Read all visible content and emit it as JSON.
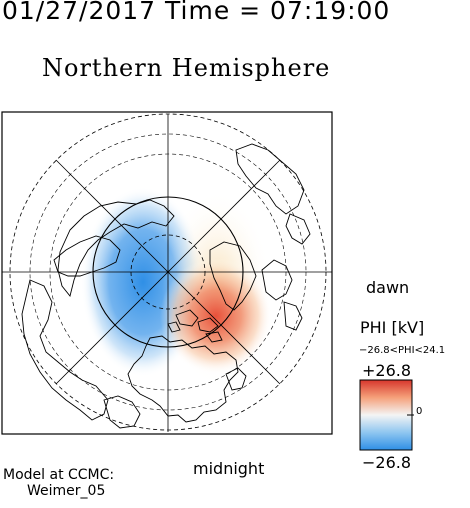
{
  "header": {
    "datetime": "01/27/2017 Time = 07:19:00",
    "title": "Northern Hemisphere"
  },
  "map": {
    "orientation_labels": {
      "right": "dawn",
      "bottom": "midnight"
    },
    "colors": {
      "negative": "#2f8fe6",
      "positive": "#e8503a",
      "frame": "#000000",
      "coast": "#000000"
    },
    "negative_cell": {
      "location": "dusk side, centered pre-midnight",
      "shown_level": "about -26"
    },
    "positive_cell": {
      "location": "dawn side, centered post-midnight",
      "shown_level": "about +25"
    }
  },
  "colorbar": {
    "title": "PHI [kV]",
    "range_text": "−26.8<PHI<24.1",
    "max_label": "+26.8",
    "min_label": "−26.8",
    "zero_label": "0",
    "max_value": 26.8,
    "min_value": -26.8,
    "colors": {
      "top": "#d7362c",
      "upper": "#f5a07a",
      "middle": "#f4f4f4",
      "lower": "#8fc6f0",
      "bottom": "#2f8fe6"
    }
  },
  "footer": {
    "model_line1": "Model at CCMC:",
    "model_line2": "Weimer_05"
  }
}
